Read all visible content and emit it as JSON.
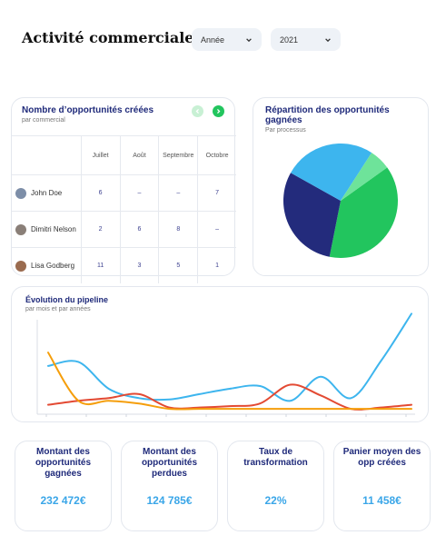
{
  "header": {
    "title": "Activité commerciale",
    "filters": [
      {
        "value": "Année",
        "icon": "chevron-down-icon"
      },
      {
        "value": "2021",
        "icon": "chevron-down-icon"
      }
    ]
  },
  "opportunities": {
    "title": "Nombre d’opportunités créées",
    "subtitle": "par commercial",
    "nav": {
      "prev_icon": "chevron-left-icon",
      "next_icon": "chevron-right-icon"
    },
    "columns": [
      "Juillet",
      "Août",
      "Septembre",
      "Octobre"
    ],
    "rows": [
      {
        "name": "John Doe",
        "avatar_color": "#7d8ea8",
        "values": [
          "6",
          "–",
          "–",
          "7"
        ]
      },
      {
        "name": "Dimitri Nelson",
        "avatar_color": "#8a7f78",
        "values": [
          "2",
          "6",
          "8",
          "–"
        ]
      },
      {
        "name": "Lisa Godberg",
        "avatar_color": "#9a6b4f",
        "values": [
          "11",
          "3",
          "5",
          "1"
        ]
      }
    ]
  },
  "won_split": {
    "title": "Répartition des opportunités gagnées",
    "subtitle": "Par processus"
  },
  "pipeline": {
    "title": "Évolution du pipeline",
    "subtitle": "par mois et par années"
  },
  "kpis": [
    {
      "label": "Montant des opportunités gagnées",
      "value": "232 472€"
    },
    {
      "label": "Montant des opportunités perdues",
      "value": "124 785€"
    },
    {
      "label": "Taux de transformation",
      "value": "22%"
    },
    {
      "label": "Panier moyen des opp créées",
      "value": "11 458€"
    }
  ],
  "colors": {
    "accent_green": "#22c55e",
    "accent_blue": "#3aa6e8",
    "navy": "#1f2a7a"
  },
  "chart_data": [
    {
      "type": "pie",
      "title": "Répartition des opportunités gagnées",
      "slices": [
        {
          "value": 38,
          "color": "#22c55e"
        },
        {
          "value": 30,
          "color": "#232b7c"
        },
        {
          "value": 26,
          "color": "#3db5ee"
        },
        {
          "value": 6,
          "color": "#6ee39a"
        }
      ]
    },
    {
      "type": "line",
      "title": "Évolution du pipeline",
      "series": [
        {
          "color": "#3db5ee",
          "values": [
            3.6,
            3.9,
            1.9,
            1.2,
            1.1,
            1.5,
            1.9,
            2.1,
            1.0,
            2.8,
            1.2,
            4.0,
            7.5
          ]
        },
        {
          "color": "#e34a33",
          "values": [
            0.7,
            1.0,
            1.2,
            1.5,
            0.5,
            0.5,
            0.6,
            0.8,
            2.2,
            1.4,
            0.4,
            0.5,
            0.7
          ]
        },
        {
          "color": "#f59e0b",
          "values": [
            4.6,
            1.0,
            1.0,
            0.8,
            0.4,
            0.4,
            0.4,
            0.4,
            0.4,
            0.4,
            0.4,
            0.4,
            0.4
          ]
        }
      ],
      "ylim": [
        0,
        8
      ]
    }
  ]
}
